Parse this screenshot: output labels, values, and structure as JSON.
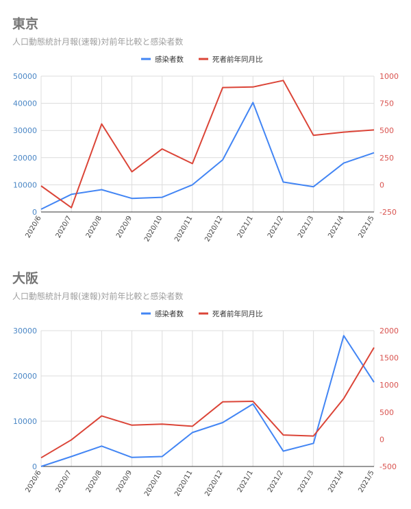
{
  "chart_data": [
    {
      "type": "line",
      "title": "東京",
      "subtitle": "人口動態統計月報(速報)対前年比較と感染者数",
      "categories": [
        "2020/6",
        "2020/7",
        "2020/8",
        "2020/9",
        "2020/10",
        "2020/11",
        "2020/12",
        "2021/1",
        "2021/2",
        "2021/3",
        "2021/4",
        "2021/5"
      ],
      "series": [
        {
          "name": "感染者数",
          "axis": "left",
          "color": "#4285f4",
          "values": [
            1000,
            6500,
            8200,
            5000,
            5400,
            10000,
            19200,
            40300,
            11000,
            9300,
            18000,
            21800
          ]
        },
        {
          "name": "死者前年同月比",
          "axis": "right",
          "color": "#db4437",
          "values": [
            -10,
            -210,
            560,
            120,
            330,
            195,
            895,
            900,
            960,
            455,
            485,
            505
          ]
        }
      ],
      "ylim_left": [
        0,
        50000
      ],
      "ylim_right": [
        -250,
        1000
      ],
      "yticks_left": [
        0,
        10000,
        20000,
        30000,
        40000,
        50000
      ],
      "yticks_right": [
        -250,
        0,
        250,
        500,
        750,
        1000
      ],
      "legend": "top",
      "grid": true
    },
    {
      "type": "line",
      "title": "大阪",
      "subtitle": "人口動態統計月報(速報)対前年比較と感染者数",
      "categories": [
        "2020/6",
        "2020/7",
        "2020/8",
        "2020/9",
        "2020/10",
        "2020/11",
        "2020/12",
        "2021/1",
        "2021/2",
        "2021/3",
        "2021/4",
        "2021/5"
      ],
      "series": [
        {
          "name": "感染者数",
          "axis": "left",
          "color": "#4285f4",
          "values": [
            0,
            2200,
            4500,
            2000,
            2200,
            7500,
            9700,
            13800,
            3400,
            5100,
            28900,
            18600
          ]
        },
        {
          "name": "死者前年同月比",
          "axis": "right",
          "color": "#db4437",
          "values": [
            -340,
            -10,
            430,
            260,
            280,
            240,
            690,
            700,
            80,
            60,
            750,
            1690
          ]
        }
      ],
      "ylim_left": [
        0,
        30000
      ],
      "ylim_right": [
        -500,
        2000
      ],
      "yticks_left": [
        0,
        10000,
        20000,
        30000
      ],
      "yticks_right": [
        -500,
        0,
        500,
        1000,
        1500,
        2000
      ],
      "legend": "top",
      "grid": true
    }
  ]
}
